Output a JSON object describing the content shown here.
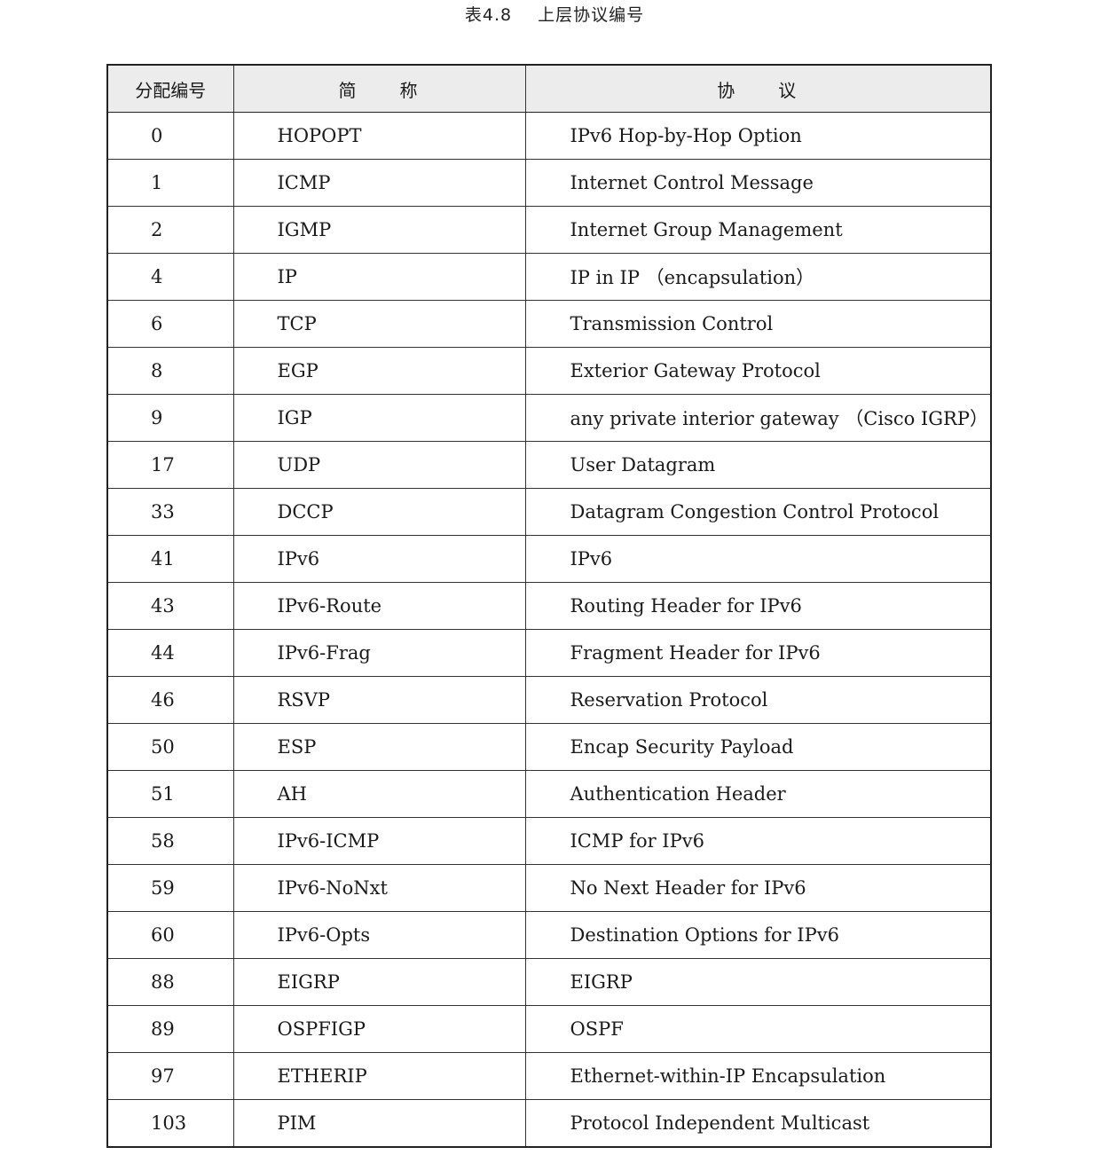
{
  "caption": {
    "label": "表4.8",
    "title": "上层协议编号"
  },
  "table": {
    "headers": {
      "number": "分配编号",
      "abbreviation": "简　　称",
      "protocol": "协　　议"
    },
    "rows": [
      {
        "number": "0",
        "abbreviation": "HOPOPT",
        "protocol": "IPv6 Hop-by-Hop Option"
      },
      {
        "number": "1",
        "abbreviation": "ICMP",
        "protocol": "Internet Control Message"
      },
      {
        "number": "2",
        "abbreviation": "IGMP",
        "protocol": "Internet Group Management"
      },
      {
        "number": "4",
        "abbreviation": "IP",
        "protocol": "IP in IP （encapsulation）"
      },
      {
        "number": "6",
        "abbreviation": "TCP",
        "protocol": "Transmission Control"
      },
      {
        "number": "8",
        "abbreviation": "EGP",
        "protocol": "Exterior Gateway Protocol"
      },
      {
        "number": "9",
        "abbreviation": "IGP",
        "protocol": "any private interior gateway （Cisco IGRP）"
      },
      {
        "number": "17",
        "abbreviation": "UDP",
        "protocol": "User Datagram"
      },
      {
        "number": "33",
        "abbreviation": "DCCP",
        "protocol": "Datagram Congestion Control Protocol"
      },
      {
        "number": "41",
        "abbreviation": "IPv6",
        "protocol": "IPv6"
      },
      {
        "number": "43",
        "abbreviation": "IPv6-Route",
        "protocol": "Routing Header for IPv6"
      },
      {
        "number": "44",
        "abbreviation": "IPv6-Frag",
        "protocol": "Fragment Header for IPv6"
      },
      {
        "number": "46",
        "abbreviation": "RSVP",
        "protocol": "Reservation Protocol"
      },
      {
        "number": "50",
        "abbreviation": "ESP",
        "protocol": "Encap Security Payload"
      },
      {
        "number": "51",
        "abbreviation": "AH",
        "protocol": "Authentication Header"
      },
      {
        "number": "58",
        "abbreviation": "IPv6-ICMP",
        "protocol": "ICMP for IPv6"
      },
      {
        "number": "59",
        "abbreviation": "IPv6-NoNxt",
        "protocol": "No Next Header for IPv6"
      },
      {
        "number": "60",
        "abbreviation": "IPv6-Opts",
        "protocol": "Destination Options for IPv6"
      },
      {
        "number": "88",
        "abbreviation": "EIGRP",
        "protocol": "EIGRP"
      },
      {
        "number": "89",
        "abbreviation": "OSPFIGP",
        "protocol": "OSPF"
      },
      {
        "number": "97",
        "abbreviation": "ETHERIP",
        "protocol": "Ethernet-within-IP Encapsulation"
      },
      {
        "number": "103",
        "abbreviation": "PIM",
        "protocol": "Protocol Independent Multicast"
      }
    ]
  }
}
